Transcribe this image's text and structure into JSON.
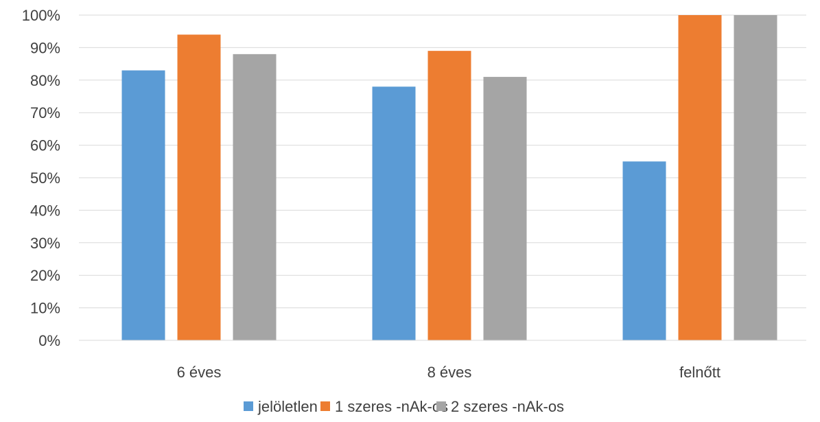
{
  "chart_data": {
    "type": "bar",
    "title": "",
    "xlabel": "",
    "ylabel": "",
    "categories": [
      "6 éves",
      "8 éves",
      "felnőtt"
    ],
    "series": [
      {
        "name": "jelöletlen",
        "color": "#5b9bd5",
        "values": [
          83,
          78,
          55
        ]
      },
      {
        "name": "1 szeres -nAk-os",
        "color": "#ed7d31",
        "values": [
          94,
          89,
          100
        ]
      },
      {
        "name": "2 szeres -nAk-os",
        "color": "#a5a5a5",
        "values": [
          88,
          81,
          100
        ]
      }
    ],
    "ylim": [
      0,
      100
    ],
    "yticks": [
      0,
      10,
      20,
      30,
      40,
      50,
      60,
      70,
      80,
      90,
      100
    ],
    "ytick_suffix": "%",
    "grid": true,
    "legend_position": "bottom"
  }
}
